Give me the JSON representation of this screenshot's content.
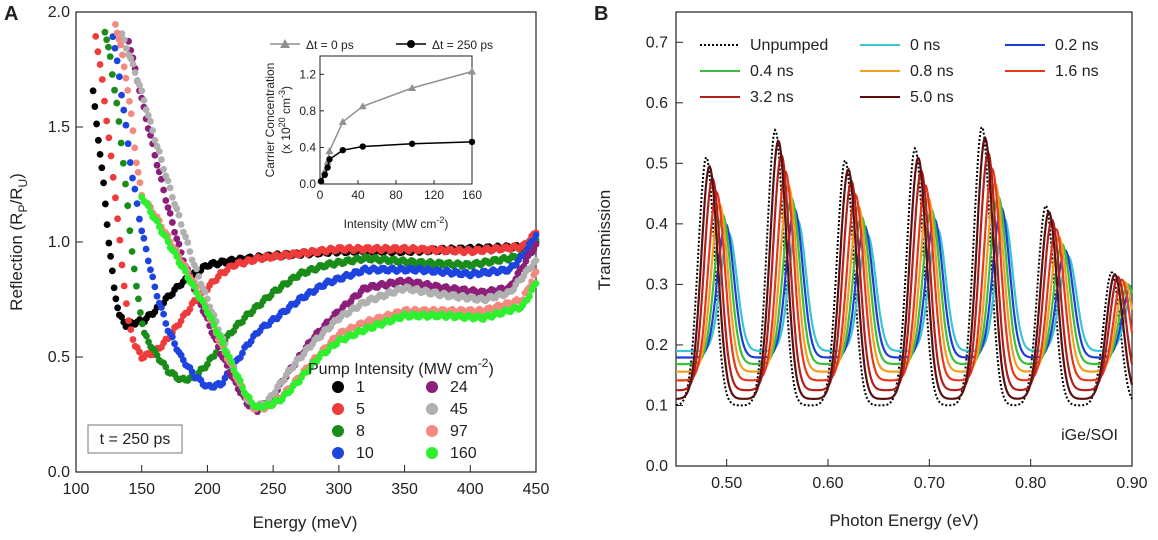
{
  "chart_data": [
    {
      "panel": "A",
      "type": "scatter",
      "xlabel": "Energy (meV)",
      "ylabel_main": "Reflection (R",
      "ylabel_sub1": "P",
      "ylabel_mid": "/R",
      "ylabel_sub2": "U",
      "ylabel_end": ")",
      "xlim": [
        100,
        450
      ],
      "ylim": [
        0.0,
        2.0
      ],
      "xticks": [
        100,
        150,
        200,
        250,
        300,
        350,
        400,
        450
      ],
      "yticks": [
        "0.0",
        "0.5",
        "1.0",
        "1.5",
        "2.0"
      ],
      "yticks_num": [
        0.0,
        0.5,
        1.0,
        1.5,
        2.0
      ],
      "annotation": "t = 250 ps",
      "legend_title": "Pump Intensity (MW cm",
      "legend_title_sup": "-2",
      "legend_title_end": ")",
      "series": [
        {
          "name": "1",
          "color": "#000000",
          "points": [
            [
              113,
              1.65
            ],
            [
              117,
              1.45
            ],
            [
              121,
              1.25
            ],
            [
              125,
              1.0
            ],
            [
              129,
              0.8
            ],
            [
              133,
              0.68
            ],
            [
              138,
              0.64
            ],
            [
              145,
              0.65
            ],
            [
              152,
              0.66
            ],
            [
              160,
              0.7
            ],
            [
              170,
              0.76
            ],
            [
              180,
              0.82
            ],
            [
              190,
              0.86
            ],
            [
              200,
              0.9
            ],
            [
              220,
              0.92
            ],
            [
              250,
              0.94
            ],
            [
              300,
              0.96
            ],
            [
              350,
              0.96
            ],
            [
              400,
              0.97
            ],
            [
              440,
              0.98
            ],
            [
              450,
              1.0
            ]
          ]
        },
        {
          "name": "5",
          "color": "#ee3b3b",
          "points": [
            [
              115,
              1.9
            ],
            [
              120,
              1.7
            ],
            [
              125,
              1.45
            ],
            [
              130,
              1.2
            ],
            [
              135,
              0.9
            ],
            [
              140,
              0.65
            ],
            [
              145,
              0.55
            ],
            [
              150,
              0.5
            ],
            [
              160,
              0.52
            ],
            [
              170,
              0.58
            ],
            [
              180,
              0.66
            ],
            [
              190,
              0.74
            ],
            [
              200,
              0.8
            ],
            [
              210,
              0.86
            ],
            [
              220,
              0.9
            ],
            [
              240,
              0.93
            ],
            [
              270,
              0.95
            ],
            [
              300,
              0.97
            ],
            [
              350,
              0.97
            ],
            [
              400,
              0.96
            ],
            [
              440,
              0.98
            ],
            [
              450,
              1.04
            ]
          ]
        },
        {
          "name": "8",
          "color": "#1a8c1a",
          "points": [
            [
              122,
              1.92
            ],
            [
              126,
              1.8
            ],
            [
              131,
              1.6
            ],
            [
              136,
              1.35
            ],
            [
              141,
              1.05
            ],
            [
              146,
              0.8
            ],
            [
              152,
              0.6
            ],
            [
              160,
              0.52
            ],
            [
              170,
              0.44
            ],
            [
              180,
              0.4
            ],
            [
              190,
              0.41
            ],
            [
              200,
              0.47
            ],
            [
              210,
              0.55
            ],
            [
              220,
              0.62
            ],
            [
              230,
              0.68
            ],
            [
              250,
              0.78
            ],
            [
              270,
              0.86
            ],
            [
              290,
              0.9
            ],
            [
              320,
              0.93
            ],
            [
              360,
              0.91
            ],
            [
              400,
              0.9
            ],
            [
              440,
              0.94
            ],
            [
              450,
              1.01
            ]
          ]
        },
        {
          "name": "10",
          "color": "#1e44e0",
          "points": [
            [
              128,
              1.9
            ],
            [
              133,
              1.72
            ],
            [
              138,
              1.5
            ],
            [
              143,
              1.28
            ],
            [
              150,
              1.05
            ],
            [
              160,
              0.8
            ],
            [
              170,
              0.62
            ],
            [
              180,
              0.5
            ],
            [
              190,
              0.42
            ],
            [
              200,
              0.37
            ],
            [
              210,
              0.38
            ],
            [
              220,
              0.46
            ],
            [
              230,
              0.55
            ],
            [
              240,
              0.62
            ],
            [
              250,
              0.66
            ],
            [
              270,
              0.75
            ],
            [
              290,
              0.82
            ],
            [
              320,
              0.88
            ],
            [
              360,
              0.88
            ],
            [
              400,
              0.86
            ],
            [
              430,
              0.88
            ],
            [
              440,
              0.94
            ],
            [
              450,
              1.03
            ]
          ]
        },
        {
          "name": "24",
          "color": "#8b1f7a",
          "points": [
            [
              140,
              1.88
            ],
            [
              145,
              1.75
            ],
            [
              150,
              1.62
            ],
            [
              160,
              1.38
            ],
            [
              170,
              1.15
            ],
            [
              180,
              0.95
            ],
            [
              190,
              0.8
            ],
            [
              200,
              0.66
            ],
            [
              210,
              0.52
            ],
            [
              220,
              0.4
            ],
            [
              230,
              0.3
            ],
            [
              238,
              0.27
            ],
            [
              250,
              0.33
            ],
            [
              260,
              0.42
            ],
            [
              270,
              0.5
            ],
            [
              280,
              0.58
            ],
            [
              300,
              0.7
            ],
            [
              320,
              0.8
            ],
            [
              350,
              0.83
            ],
            [
              380,
              0.8
            ],
            [
              410,
              0.78
            ],
            [
              430,
              0.8
            ],
            [
              450,
              0.99
            ]
          ]
        },
        {
          "name": "45",
          "color": "#b0b0b0",
          "points": [
            [
              135,
              1.9
            ],
            [
              140,
              1.82
            ],
            [
              145,
              1.74
            ],
            [
              150,
              1.65
            ],
            [
              160,
              1.45
            ],
            [
              170,
              1.26
            ],
            [
              180,
              1.08
            ],
            [
              190,
              0.9
            ],
            [
              200,
              0.75
            ],
            [
              210,
              0.6
            ],
            [
              220,
              0.45
            ],
            [
              228,
              0.34
            ],
            [
              235,
              0.28
            ],
            [
              245,
              0.3
            ],
            [
              255,
              0.38
            ],
            [
              265,
              0.46
            ],
            [
              280,
              0.56
            ],
            [
              300,
              0.67
            ],
            [
              320,
              0.74
            ],
            [
              350,
              0.8
            ],
            [
              380,
              0.77
            ],
            [
              410,
              0.75
            ],
            [
              430,
              0.78
            ],
            [
              450,
              0.92
            ]
          ]
        },
        {
          "name": "97",
          "color": "#f28a80",
          "points": [
            [
              130,
              1.95
            ],
            [
              134,
              1.85
            ],
            [
              138,
              1.72
            ],
            [
              142,
              1.55
            ],
            [
              146,
              1.35
            ],
            [
              150,
              1.2
            ],
            [
              160,
              1.12
            ],
            [
              170,
              1.02
            ],
            [
              180,
              0.92
            ],
            [
              190,
              0.82
            ],
            [
              200,
              0.7
            ],
            [
              210,
              0.56
            ],
            [
              220,
              0.44
            ],
            [
              228,
              0.35
            ],
            [
              235,
              0.28
            ],
            [
              245,
              0.28
            ],
            [
              255,
              0.32
            ],
            [
              265,
              0.38
            ],
            [
              280,
              0.48
            ],
            [
              300,
              0.6
            ],
            [
              320,
              0.65
            ],
            [
              350,
              0.7
            ],
            [
              380,
              0.7
            ],
            [
              410,
              0.7
            ],
            [
              440,
              0.75
            ],
            [
              450,
              0.87
            ]
          ]
        },
        {
          "name": "160",
          "color": "#2ef02e",
          "points": [
            [
              150,
              1.2
            ],
            [
              160,
              1.1
            ],
            [
              170,
              1.0
            ],
            [
              180,
              0.9
            ],
            [
              190,
              0.8
            ],
            [
              200,
              0.7
            ],
            [
              210,
              0.58
            ],
            [
              220,
              0.45
            ],
            [
              230,
              0.33
            ],
            [
              237,
              0.28
            ],
            [
              247,
              0.29
            ],
            [
              257,
              0.32
            ],
            [
              270,
              0.4
            ],
            [
              285,
              0.5
            ],
            [
              300,
              0.57
            ],
            [
              320,
              0.62
            ],
            [
              350,
              0.68
            ],
            [
              380,
              0.68
            ],
            [
              410,
              0.67
            ],
            [
              440,
              0.72
            ],
            [
              450,
              0.82
            ]
          ]
        }
      ]
    },
    {
      "panel": "A-inset",
      "type": "line",
      "xlabel": "Intensity (MW cm",
      "xlabel_sup": "-2",
      "xlabel_end": ")",
      "ylabel_line1": "Carrier Concentration",
      "ylabel_line2": "(x 10",
      "ylabel_sup": "20",
      "ylabel_line2_mid": " cm",
      "ylabel_sup2": "-3",
      "ylabel_line2_end": ")",
      "xlim": [
        0,
        160
      ],
      "ylim": [
        0.0,
        1.4
      ],
      "xticks": [
        "0",
        "40",
        "80",
        "120",
        "160"
      ],
      "xticks_num": [
        0,
        40,
        80,
        120,
        160
      ],
      "yticks": [
        "0.0",
        "0.4",
        "0.8",
        "1.2"
      ],
      "yticks_num": [
        0.0,
        0.4,
        0.8,
        1.2
      ],
      "series": [
        {
          "name": "Δt = 0 ps",
          "color": "#909090",
          "marker": "triangle",
          "points": [
            [
              1,
              0.04
            ],
            [
              5,
              0.14
            ],
            [
              8,
              0.24
            ],
            [
              10,
              0.36
            ],
            [
              24,
              0.68
            ],
            [
              45,
              0.85
            ],
            [
              97,
              1.05
            ],
            [
              160,
              1.23
            ]
          ]
        },
        {
          "name": "Δt = 250 ps",
          "color": "#000000",
          "marker": "circle",
          "points": [
            [
              1,
              0.03
            ],
            [
              5,
              0.1
            ],
            [
              8,
              0.18
            ],
            [
              10,
              0.27
            ],
            [
              24,
              0.37
            ],
            [
              45,
              0.41
            ],
            [
              97,
              0.44
            ],
            [
              160,
              0.46
            ]
          ]
        }
      ]
    },
    {
      "panel": "B",
      "type": "line",
      "xlabel": "Photon Energy (eV)",
      "ylabel": "Transmission",
      "xlim": [
        0.45,
        0.9
      ],
      "ylim": [
        0.0,
        0.75
      ],
      "xticks": [
        "0.50",
        "0.60",
        "0.70",
        "0.80",
        "0.90"
      ],
      "xticks_num": [
        0.5,
        0.6,
        0.7,
        0.8,
        0.9
      ],
      "yticks": [
        "0.0",
        "0.1",
        "0.2",
        "0.3",
        "0.4",
        "0.5",
        "0.6",
        "0.7"
      ],
      "yticks_num": [
        0.0,
        0.1,
        0.2,
        0.3,
        0.4,
        0.5,
        0.6,
        0.7
      ],
      "annotation": "iGe/SOI",
      "series": [
        {
          "name": "Unpumped",
          "color": "#000000",
          "dashed": true,
          "shift": 0.0,
          "decay": 0.0
        },
        {
          "name": "0 ns",
          "color": "#3bc4d4",
          "shift": 0.022,
          "decay": 1.0
        },
        {
          "name": "0.2 ns",
          "color": "#1e3fd6",
          "shift": 0.019,
          "decay": 0.88
        },
        {
          "name": "0.4 ns",
          "color": "#3cbe3c",
          "shift": 0.016,
          "decay": 0.76
        },
        {
          "name": "0.8 ns",
          "color": "#f0a020",
          "shift": 0.013,
          "decay": 0.62
        },
        {
          "name": "1.6 ns",
          "color": "#e8381c",
          "shift": 0.01,
          "decay": 0.46
        },
        {
          "name": "3.2 ns",
          "color": "#b0201c",
          "shift": 0.006,
          "decay": 0.28
        },
        {
          "name": "5.0 ns",
          "color": "#5a1010",
          "shift": 0.003,
          "decay": 0.12
        }
      ]
    }
  ]
}
